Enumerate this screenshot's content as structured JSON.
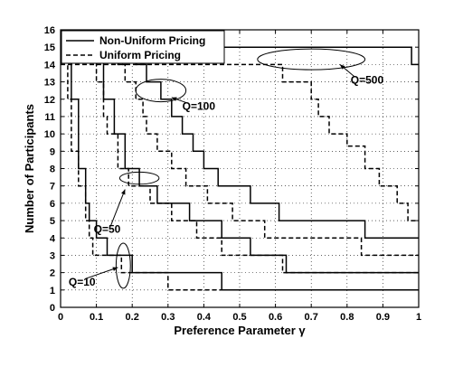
{
  "chart_data": {
    "type": "line",
    "xlabel": "Preference Parameter γ",
    "ylabel": "Number of Participants",
    "xlim": [
      0,
      1
    ],
    "ylim": [
      0,
      16
    ],
    "xticks": [
      "0",
      "0.1",
      "0.2",
      "0.3",
      "0.4",
      "0.5",
      "0.6",
      "0.7",
      "0.8",
      "0.9",
      "1"
    ],
    "yticks": [
      "0",
      "1",
      "2",
      "3",
      "4",
      "5",
      "6",
      "7",
      "8",
      "9",
      "10",
      "11",
      "12",
      "13",
      "14",
      "15",
      "16"
    ],
    "grid": true,
    "legend": {
      "placement": "top-left",
      "entries": [
        {
          "label": "Non-Uniform Pricing",
          "style": "solid"
        },
        {
          "label": "Uniform Pricing",
          "style": "dashed"
        }
      ]
    },
    "series": [
      {
        "group": "Q=10",
        "style": "solid",
        "points": [
          [
            0.02,
            15
          ],
          [
            0.03,
            12
          ],
          [
            0.05,
            8
          ],
          [
            0.07,
            6
          ],
          [
            0.08,
            5
          ],
          [
            0.1,
            4
          ],
          [
            0.13,
            3
          ],
          [
            0.2,
            2
          ],
          [
            0.45,
            1
          ],
          [
            1.0,
            1
          ]
        ]
      },
      {
        "group": "Q=10",
        "style": "dashed",
        "points": [
          [
            0.01,
            15
          ],
          [
            0.02,
            12
          ],
          [
            0.03,
            9
          ],
          [
            0.05,
            7
          ],
          [
            0.07,
            5
          ],
          [
            0.08,
            4
          ],
          [
            0.09,
            3
          ],
          [
            0.17,
            2
          ],
          [
            0.3,
            1
          ],
          [
            1.0,
            1
          ]
        ]
      },
      {
        "group": "Q=50",
        "style": "solid",
        "points": [
          [
            0.1,
            15
          ],
          [
            0.12,
            12
          ],
          [
            0.15,
            10
          ],
          [
            0.18,
            8
          ],
          [
            0.22,
            7
          ],
          [
            0.27,
            6
          ],
          [
            0.36,
            5
          ],
          [
            0.45,
            4
          ],
          [
            0.53,
            3
          ],
          [
            0.63,
            2
          ],
          [
            1.0,
            2
          ]
        ]
      },
      {
        "group": "Q=50",
        "style": "dashed",
        "points": [
          [
            0.08,
            15
          ],
          [
            0.1,
            13
          ],
          [
            0.12,
            11
          ],
          [
            0.13,
            10
          ],
          [
            0.16,
            8
          ],
          [
            0.19,
            7
          ],
          [
            0.25,
            6
          ],
          [
            0.31,
            5
          ],
          [
            0.38,
            4
          ],
          [
            0.45,
            3
          ],
          [
            0.62,
            2
          ],
          [
            1.0,
            2
          ]
        ]
      },
      {
        "group": "Q=100",
        "style": "solid",
        "points": [
          [
            0.18,
            15
          ],
          [
            0.21,
            14
          ],
          [
            0.24,
            13
          ],
          [
            0.28,
            12
          ],
          [
            0.31,
            11
          ],
          [
            0.34,
            10
          ],
          [
            0.37,
            9
          ],
          [
            0.4,
            8
          ],
          [
            0.44,
            7
          ],
          [
            0.53,
            6
          ],
          [
            0.61,
            5
          ],
          [
            0.85,
            4
          ],
          [
            1.0,
            4
          ]
        ]
      },
      {
        "group": "Q=100",
        "style": "dashed",
        "points": [
          [
            0.14,
            15
          ],
          [
            0.16,
            14
          ],
          [
            0.18,
            13
          ],
          [
            0.21,
            12
          ],
          [
            0.23,
            11
          ],
          [
            0.24,
            10
          ],
          [
            0.27,
            9
          ],
          [
            0.31,
            8
          ],
          [
            0.35,
            7
          ],
          [
            0.41,
            6
          ],
          [
            0.48,
            5
          ],
          [
            0.57,
            4
          ],
          [
            0.84,
            3
          ],
          [
            1.0,
            3
          ]
        ]
      },
      {
        "group": "Q=500",
        "style": "solid",
        "points": [
          [
            0.0,
            15
          ],
          [
            0.97,
            15
          ],
          [
            0.98,
            14
          ],
          [
            1.0,
            14
          ]
        ]
      },
      {
        "group": "Q=500",
        "style": "dashed",
        "points": [
          [
            0.0,
            14
          ],
          [
            0.6,
            14
          ],
          [
            0.62,
            13
          ],
          [
            0.7,
            12
          ],
          [
            0.72,
            11
          ],
          [
            0.75,
            10
          ],
          [
            0.8,
            9.3
          ],
          [
            0.85,
            8
          ],
          [
            0.89,
            7
          ],
          [
            0.94,
            6
          ],
          [
            0.97,
            5
          ],
          [
            1.0,
            5
          ]
        ]
      }
    ],
    "annotations": [
      {
        "text": "Q=10",
        "ellipse": [
          0.175,
          2.4,
          0.02,
          1.3
        ],
        "label_at": [
          0.06,
          1.45
        ],
        "arrow_to": [
          0.16,
          2.3
        ]
      },
      {
        "text": "Q=50",
        "ellipse": [
          0.22,
          7.45,
          0.055,
          0.35
        ],
        "label_at": [
          0.13,
          4.5
        ],
        "arrow_to": [
          0.18,
          6.8
        ]
      },
      {
        "text": "Q=100",
        "ellipse": [
          0.28,
          12.5,
          0.07,
          0.65
        ],
        "label_at": [
          0.34,
          11.6
        ],
        "arrow_to": [
          0.31,
          12.1
        ]
      },
      {
        "text": "Q=500",
        "ellipse": [
          0.7,
          14.3,
          0.15,
          0.6
        ],
        "label_at": [
          0.81,
          13.1
        ],
        "arrow_to": [
          0.78,
          14.0
        ]
      }
    ]
  }
}
